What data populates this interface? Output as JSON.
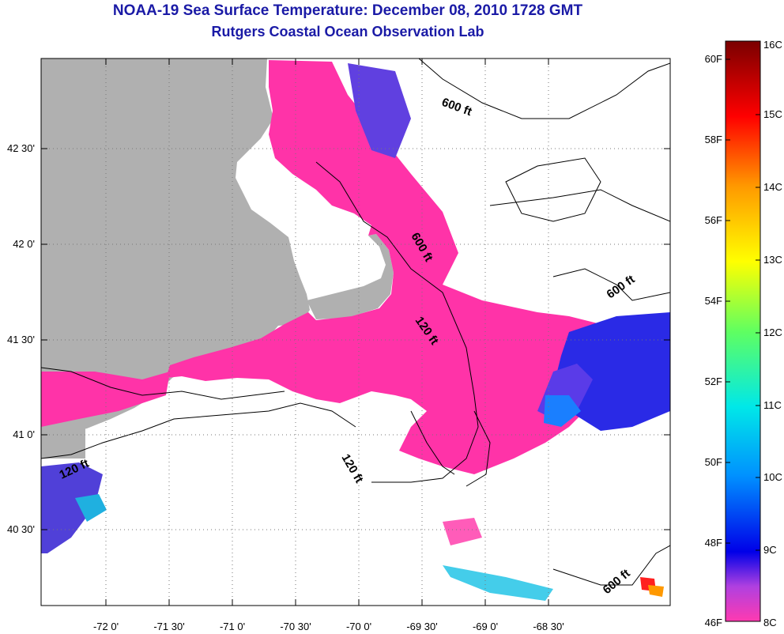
{
  "title": "NOAA-19 Sea Surface Temperature:  December 08, 2010 1728 GMT",
  "subtitle": "Rutgers Coastal Ocean Observation Lab",
  "map": {
    "lon_ticks": [
      "-72 0'",
      "-71 30'",
      "-71 0'",
      "-70 30'",
      "-70 0'",
      "-69 30'",
      "-69 0'",
      "-68 30'"
    ],
    "lat_ticks": [
      "42 30'",
      "42 0'",
      "41 30'",
      "41 0'",
      "40 30'"
    ],
    "contour_labels": [
      "600 ft",
      "600 ft",
      "600 ft",
      "120 ft",
      "120 ft",
      "120 ft",
      "600 ft"
    ],
    "colors": {
      "land": "#b0b0b0",
      "warm_water": "#ff33a8",
      "cool_water": "#3333ee"
    }
  },
  "colorbar": {
    "fahrenheit": [
      "60F",
      "58F",
      "56F",
      "54F",
      "52F",
      "50F",
      "48F",
      "46F"
    ],
    "celsius": [
      "16C",
      "15C",
      "14C",
      "13C",
      "12C",
      "11C",
      "10C",
      "9C",
      "8C"
    ]
  }
}
